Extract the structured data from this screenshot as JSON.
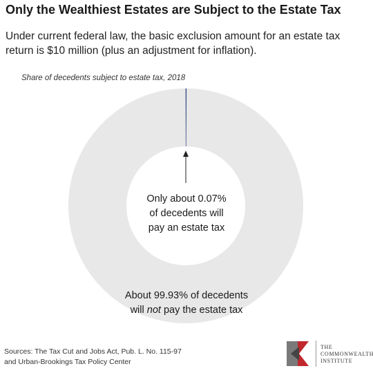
{
  "title": "Only the Wealthiest Estates are Subject to the Estate Tax",
  "subtitle": "Under current federal law, the basic exclusion amount for an estate tax return is $10 million (plus an adjustment for inflation).",
  "chart_data": {
    "type": "pie",
    "style": "donut",
    "title": "Share of decedents subject to estate tax, 2018",
    "slices": [
      {
        "label": "Only about 0.07% of decedents will pay an estate tax",
        "value": 0.07,
        "color": "#1f3a7a"
      },
      {
        "label": "About 99.93% of decedents will not pay the estate tax",
        "value": 99.93,
        "color": "#e8e8e8"
      }
    ],
    "annotations": {
      "small_line1": "Only about 0.07%",
      "small_line2": "of decedents will",
      "small_line3": "pay an estate tax",
      "large_line1": "About 99.93% of decedents",
      "large_line2_pre": "will ",
      "large_line2_em": "not",
      "large_line2_post": " pay the estate tax"
    }
  },
  "sources": {
    "line1": "Sources: The Tax Cut and Jobs Act, Pub. L. No. 115-97",
    "line2": "and Urban-Brookings Tax Policy Center"
  },
  "logo": {
    "line1": "THE",
    "line2": "COMMONWEALTH",
    "line3": "INSTITUTE",
    "colors": {
      "red": "#c0282d",
      "gray": "#7a7a7a",
      "dark": "#444444"
    }
  }
}
